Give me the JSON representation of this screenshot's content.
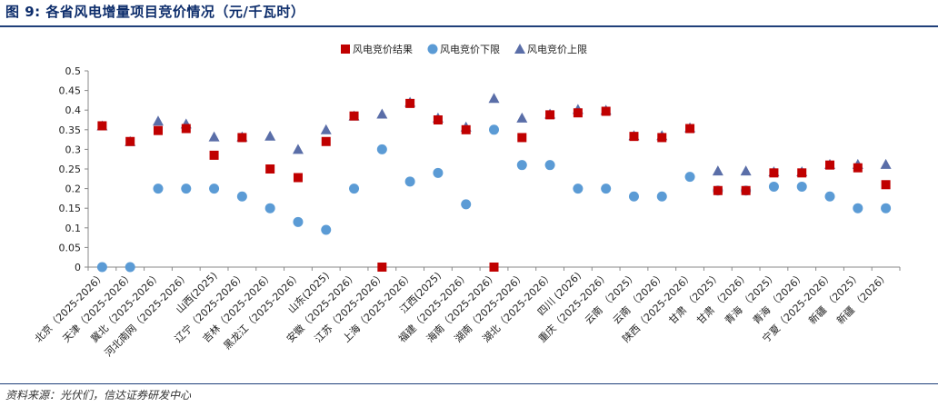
{
  "header": {
    "title": "图 9:  各省风电增量项目竞价情况（元/千瓦时）"
  },
  "footer": {
    "source": "资料来源：光伏们，信达证券研发中心"
  },
  "colors": {
    "result": "#c00000",
    "lower": "#5b9bd5",
    "upper": "#5a6ea8",
    "axis": "#888888",
    "title": "#0d2d6b"
  },
  "chart_data": {
    "type": "scatter",
    "title": "",
    "xlabel": "",
    "ylabel": "",
    "ylim": [
      0,
      0.5
    ],
    "yticks": [
      0,
      0.05,
      0.1,
      0.15,
      0.2,
      0.25,
      0.3,
      0.35,
      0.4,
      0.45,
      0.5
    ],
    "ytick_labels": [
      "0",
      "0.05",
      "0.1",
      "0.15",
      "0.2",
      "0.25",
      "0.3",
      "0.35",
      "0.4",
      "0.45",
      "0.5"
    ],
    "legend_position": "top",
    "categories": [
      "北京（2025-2026）",
      "天津（2025-2026）",
      "冀北（2025-2026）",
      "河北南网（2025-2026）",
      "山西(2025)",
      "辽宁（2025-2026）",
      "吉林（2025-2026）",
      "黑龙江（2025-2026）",
      "山东(2025)",
      "安徽（2025-2026）",
      "江苏（2025-2026）",
      "上海（2025-2026）",
      "江西(2025)",
      "福建（2025-2026）",
      "海南（2025-2026）",
      "湖南（2025-2026）",
      "湖北（2025-2026）",
      "四川 (2026)",
      "重庆（2025-2026）",
      "云南 （2025）",
      "云南 （2026）",
      "陕西（2025-2026）",
      "甘肃 （2025）",
      "甘肃 （2026）",
      "青海 （2025）",
      "青海 （2026）",
      "宁夏（2025-2026）",
      "新疆 （2025）",
      "新疆 （2026）"
    ],
    "series": [
      {
        "name": "风电竞价结果",
        "marker": "square",
        "values": [
          0.36,
          0.32,
          0.348,
          0.353,
          0.285,
          0.33,
          0.25,
          0.228,
          0.32,
          0.385,
          0.0,
          0.417,
          0.375,
          0.35,
          0.0,
          0.33,
          0.388,
          0.393,
          0.397,
          0.333,
          0.33,
          0.353,
          0.195,
          0.195,
          0.24,
          0.24,
          0.26,
          0.253,
          0.21
        ]
      },
      {
        "name": "风电竞价下限",
        "marker": "circle",
        "values": [
          0.0,
          0.0,
          0.2,
          0.2,
          0.2,
          0.18,
          0.15,
          0.115,
          0.095,
          0.2,
          0.3,
          0.218,
          0.24,
          0.16,
          0.35,
          0.26,
          0.26,
          0.2,
          0.2,
          0.18,
          0.18,
          0.23,
          0.195,
          0.195,
          0.205,
          0.205,
          0.18,
          0.15,
          0.15
        ]
      },
      {
        "name": "风电竞价上限",
        "marker": "triangle",
        "values": [
          0.36,
          0.32,
          0.372,
          0.365,
          0.332,
          0.332,
          0.334,
          0.3,
          0.35,
          0.385,
          0.39,
          0.42,
          0.38,
          0.357,
          0.43,
          0.38,
          0.39,
          0.402,
          0.4,
          0.335,
          0.335,
          0.355,
          0.245,
          0.245,
          0.243,
          0.243,
          0.262,
          0.262,
          0.262
        ]
      }
    ]
  }
}
